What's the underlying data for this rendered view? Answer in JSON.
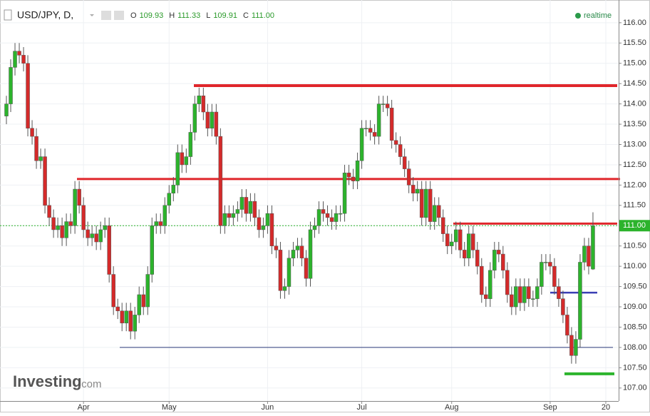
{
  "chart_data": {
    "type": "candlestick",
    "title": "USD/JPY, D,",
    "quote": [
      {
        "name": "O",
        "value": 109.93
      },
      {
        "name": "H",
        "value": 111.33
      },
      {
        "name": "L",
        "value": 109.91
      },
      {
        "name": "C",
        "value": {
          "value": 111,
          "label": "111.00"
        }
      }
    ],
    "status": "realtime",
    "brand": "Investing",
    "brand_suffix": ".com",
    "up_color": "#2cb32c",
    "down_color": "#d42a2a",
    "last_price_color": "#2cb32c",
    "grid": true,
    "xlim": [
      -1.5,
      143
    ],
    "xticks": [
      {
        "value": 18,
        "label": "Apr"
      },
      {
        "value": 38,
        "label": "May"
      },
      {
        "value": 61,
        "label": "Jun"
      },
      {
        "value": 83,
        "label": "Jul"
      },
      {
        "value": 104,
        "label": "Aug"
      },
      {
        "value": 127,
        "label": "Sep"
      },
      {
        "value": 140,
        "label": "20"
      }
    ],
    "ylim": [
      106.68,
      116.56
    ],
    "yticks": [
      {
        "value": 107,
        "label": "107.00"
      },
      {
        "value": 107.5,
        "label": "107.50"
      },
      {
        "value": 108,
        "label": "108.00"
      },
      {
        "value": 108.5,
        "label": "108.50"
      },
      {
        "value": 109,
        "label": "109.00"
      },
      {
        "value": 109.5,
        "label": "109.50"
      },
      {
        "value": 110,
        "label": "110.00"
      },
      {
        "value": 110.5,
        "label": "110.50"
      },
      {
        "value": 111,
        "label": "111.00"
      },
      {
        "value": 111.5,
        "label": "111.50"
      },
      {
        "value": 112,
        "label": "112.00"
      },
      {
        "value": 112.5,
        "label": "112.50"
      },
      {
        "value": 113,
        "label": "113.00"
      },
      {
        "value": 113.5,
        "label": "113.50"
      },
      {
        "value": 114,
        "label": "114.00"
      },
      {
        "value": 114.5,
        "label": "114.50"
      },
      {
        "value": 115,
        "label": "115.00"
      },
      {
        "value": 115.5,
        "label": "115.50"
      },
      {
        "value": 116,
        "label": "116.00"
      }
    ],
    "levels": [
      {
        "value": 114.45,
        "color": "#e0262b"
      },
      {
        "value": 112.15,
        "color": "#e0262b"
      },
      {
        "value": 111.05,
        "color": "#e0262b"
      },
      {
        "value": 109.35,
        "color": "#3a3fb4"
      },
      {
        "value": 108.0,
        "color": "#2a3a7a"
      },
      {
        "value": 107.35,
        "color": "#2db52d"
      }
    ],
    "open": [
      113.7,
      114.0,
      114.9,
      115.3,
      115.2,
      115.0,
      113.4,
      113.2,
      112.6,
      112.7,
      111.5,
      111.2,
      110.9,
      111.0,
      110.7,
      111.1,
      111.0,
      111.9,
      111.5,
      110.9,
      110.7,
      110.8,
      110.6,
      110.9,
      111.0,
      109.8,
      109.0,
      108.9,
      108.6,
      108.9,
      108.4,
      108.8,
      109.3,
      109.0,
      109.8,
      111.0,
      111.1,
      111.0,
      111.5,
      111.8,
      112.0,
      112.8,
      112.5,
      112.7,
      113.3,
      114.0,
      114.2,
      113.8,
      113.4,
      113.8,
      113.2,
      111.0,
      111.3,
      111.2,
      111.3,
      111.4,
      111.7,
      111.3,
      111.6,
      111.2,
      110.9,
      111.0,
      111.3,
      110.5,
      110.4,
      109.4,
      109.5,
      110.2,
      110.4,
      110.5,
      110.2,
      109.7,
      110.9,
      111.0,
      111.4,
      111.3,
      111.2,
      111.1,
      111.3,
      111.3,
      112.3,
      112.2,
      112.1,
      112.6,
      113.4,
      113.4,
      113.3,
      113.2,
      114.0,
      114.0,
      113.9,
      113.1,
      113.0,
      112.7,
      112.4,
      112.0,
      111.8,
      111.9,
      111.2,
      111.9,
      111.1,
      111.5,
      111.2,
      110.8,
      110.5,
      110.6,
      110.9,
      110.4,
      110.2,
      110.8,
      110.4,
      110.0,
      109.3,
      109.2,
      109.9,
      110.4,
      110.3,
      109.9,
      109.3,
      109.0,
      109.5,
      109.1,
      109.5,
      109.2,
      109.2,
      109.5,
      110.1,
      110.1,
      110.0,
      109.5,
      109.2,
      108.8,
      108.3,
      107.8,
      108.2,
      110.1,
      110.5,
      109.93
    ],
    "high": [
      114.2,
      115.1,
      115.5,
      115.5,
      115.4,
      115.2,
      113.6,
      113.4,
      112.9,
      112.9,
      111.7,
      111.4,
      111.2,
      111.2,
      111.3,
      111.3,
      112.1,
      112.1,
      111.7,
      111.1,
      111.0,
      111.0,
      111.1,
      111.2,
      111.2,
      110.0,
      109.2,
      109.1,
      109.1,
      109.1,
      109.0,
      109.5,
      109.5,
      110.0,
      111.2,
      111.3,
      111.3,
      111.7,
      112.0,
      112.2,
      113.0,
      113.0,
      112.9,
      113.5,
      114.2,
      114.4,
      114.4,
      114.0,
      114.0,
      114.0,
      113.4,
      111.5,
      111.5,
      111.5,
      111.6,
      111.9,
      111.9,
      111.8,
      111.8,
      111.4,
      111.2,
      111.5,
      111.5,
      110.7,
      110.6,
      109.7,
      110.4,
      110.6,
      110.7,
      110.7,
      110.4,
      111.1,
      111.2,
      111.6,
      111.6,
      111.5,
      111.4,
      111.5,
      111.5,
      112.5,
      112.5,
      112.4,
      112.8,
      113.6,
      113.6,
      113.6,
      113.5,
      114.2,
      114.2,
      114.2,
      114.1,
      113.3,
      113.2,
      112.9,
      112.6,
      112.2,
      112.1,
      112.1,
      112.1,
      112.1,
      111.7,
      111.7,
      111.4,
      111.0,
      110.8,
      111.1,
      111.1,
      110.6,
      111.0,
      111.0,
      110.6,
      110.2,
      109.5,
      110.1,
      110.6,
      110.6,
      110.5,
      110.1,
      109.5,
      109.7,
      109.7,
      109.7,
      109.7,
      109.4,
      109.7,
      110.3,
      110.3,
      110.3,
      110.2,
      109.7,
      109.4,
      109.0,
      108.5,
      108.4,
      110.3,
      110.7,
      110.7,
      111.33
    ],
    "low": [
      113.5,
      113.8,
      114.7,
      115.0,
      114.8,
      113.2,
      113.0,
      112.4,
      112.4,
      111.3,
      111.0,
      110.7,
      110.7,
      110.5,
      110.5,
      110.8,
      110.8,
      111.3,
      110.7,
      110.5,
      110.5,
      110.4,
      110.4,
      110.7,
      109.6,
      108.8,
      108.7,
      108.4,
      108.4,
      108.2,
      108.2,
      108.6,
      108.8,
      108.8,
      109.6,
      110.8,
      110.8,
      110.8,
      111.3,
      111.6,
      111.8,
      112.3,
      112.3,
      112.5,
      113.1,
      113.8,
      113.6,
      113.2,
      113.2,
      113.0,
      110.8,
      110.8,
      111.0,
      111.0,
      111.1,
      111.2,
      111.1,
      111.1,
      111.0,
      110.7,
      110.7,
      110.8,
      110.3,
      110.2,
      109.2,
      109.2,
      109.3,
      110.0,
      110.2,
      110.0,
      109.5,
      109.5,
      110.7,
      110.8,
      111.1,
      111.0,
      110.9,
      110.9,
      111.1,
      111.1,
      112.0,
      111.9,
      111.9,
      112.4,
      113.2,
      113.1,
      113.0,
      113.0,
      113.8,
      113.7,
      112.9,
      112.8,
      112.5,
      112.2,
      111.8,
      111.6,
      111.6,
      111.0,
      111.0,
      110.9,
      110.9,
      111.0,
      110.6,
      110.3,
      110.3,
      110.4,
      110.2,
      110.0,
      110.0,
      110.2,
      109.8,
      109.1,
      109.0,
      109.0,
      109.7,
      110.1,
      109.7,
      109.1,
      108.8,
      108.8,
      108.9,
      108.9,
      109.0,
      109.0,
      109.0,
      109.3,
      109.9,
      109.8,
      109.3,
      109.0,
      108.6,
      108.1,
      107.6,
      107.6,
      108.0,
      109.9,
      109.8,
      109.91
    ],
    "close": [
      114.0,
      114.9,
      115.3,
      115.2,
      115.0,
      113.4,
      113.2,
      112.6,
      112.7,
      111.5,
      111.2,
      110.9,
      111.0,
      110.7,
      111.1,
      111.0,
      111.9,
      111.5,
      110.9,
      110.7,
      110.8,
      110.6,
      110.9,
      111.0,
      109.8,
      109.0,
      108.9,
      108.6,
      108.9,
      108.4,
      108.8,
      109.3,
      109.0,
      109.8,
      111.0,
      111.1,
      111.0,
      111.5,
      111.8,
      112.0,
      112.8,
      112.5,
      112.7,
      113.3,
      114.0,
      114.2,
      113.8,
      113.4,
      113.8,
      113.2,
      111.0,
      111.3,
      111.2,
      111.3,
      111.4,
      111.7,
      111.3,
      111.6,
      111.2,
      110.9,
      111.0,
      111.3,
      110.5,
      110.4,
      109.4,
      109.5,
      110.2,
      110.4,
      110.5,
      110.2,
      109.7,
      110.9,
      111.0,
      111.4,
      111.3,
      111.2,
      111.1,
      111.3,
      111.3,
      112.3,
      112.2,
      112.1,
      112.6,
      113.4,
      113.4,
      113.3,
      113.2,
      114.0,
      114.0,
      113.9,
      113.1,
      113.0,
      112.7,
      112.4,
      112.0,
      111.8,
      111.9,
      111.2,
      111.9,
      111.1,
      111.5,
      111.2,
      110.8,
      110.5,
      110.6,
      110.9,
      110.4,
      110.2,
      110.8,
      110.4,
      110.0,
      109.3,
      109.2,
      109.9,
      110.4,
      110.3,
      109.9,
      109.3,
      109.0,
      109.5,
      109.1,
      109.5,
      109.2,
      109.2,
      109.5,
      110.1,
      110.1,
      110.0,
      109.5,
      109.2,
      108.8,
      108.3,
      107.8,
      108.2,
      110.1,
      110.5,
      110.0,
      111.0
    ]
  }
}
